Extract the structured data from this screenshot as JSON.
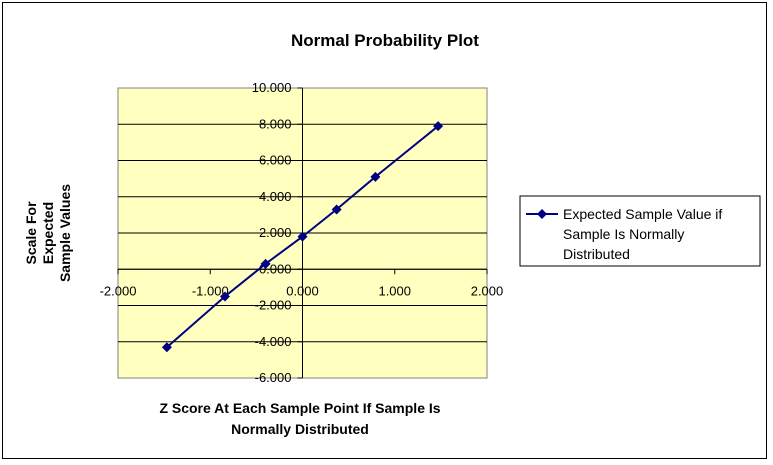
{
  "chart_data": {
    "type": "line",
    "title": "Normal Probability Plot",
    "xlabel_lines": [
      "Z Score At Each Sample Point If Sample Is",
      "Normally Distributed"
    ],
    "ylabel_lines": [
      "Scale For",
      "Expected",
      "Sample Values"
    ],
    "xlim": [
      -2,
      2
    ],
    "ylim": [
      -6,
      10
    ],
    "x_ticks": [
      "-2.000",
      "-1.000",
      "0.000",
      "1.000",
      "2.000"
    ],
    "y_ticks": [
      "10.000",
      "8.000",
      "6.000",
      "4.000",
      "2.000",
      "0.000",
      "-2.000",
      "-4.000",
      "-6.000"
    ],
    "grid": "horizontal",
    "plot_background": "#FFFFC0",
    "series": [
      {
        "name": "Expected Sample Value if Sample Is Normally Distributed",
        "name_lines": [
          "Expected Sample Value if",
          "Sample Is Normally",
          "Distributed"
        ],
        "color": "#000080",
        "marker": "diamond",
        "x": [
          -1.47,
          -0.84,
          -0.4,
          0.0,
          0.37,
          0.79,
          1.47
        ],
        "y": [
          -4.3,
          -1.5,
          0.3,
          1.8,
          3.3,
          5.1,
          7.9
        ]
      }
    ],
    "legend_position": "right"
  }
}
